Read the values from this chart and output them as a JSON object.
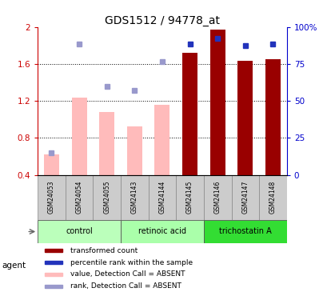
{
  "title": "GDS1512 / 94778_at",
  "samples": [
    "GSM24053",
    "GSM24054",
    "GSM24055",
    "GSM24143",
    "GSM24144",
    "GSM24145",
    "GSM24146",
    "GSM24147",
    "GSM24148"
  ],
  "groups": [
    {
      "name": "control",
      "color": "#bbffbb",
      "start": 0,
      "end": 3
    },
    {
      "name": "retinoic acid",
      "color": "#aaffaa",
      "start": 3,
      "end": 6
    },
    {
      "name": "trichostatin A",
      "color": "#33dd33",
      "start": 6,
      "end": 9
    }
  ],
  "bar_values": [
    0.62,
    1.24,
    1.08,
    0.92,
    1.16,
    1.72,
    1.97,
    1.63,
    1.65
  ],
  "bar_absent": [
    true,
    true,
    true,
    true,
    true,
    false,
    false,
    false,
    false
  ],
  "rank_values": [
    0.635,
    1.82,
    1.36,
    1.31,
    1.625,
    1.82,
    1.875,
    1.8,
    1.82
  ],
  "rank_absent": [
    true,
    true,
    true,
    true,
    true,
    false,
    false,
    false,
    false
  ],
  "ylim_left": [
    0.4,
    2.0
  ],
  "ylim_right": [
    0,
    100
  ],
  "yticks_left": [
    0.4,
    0.8,
    1.2,
    1.6,
    2.0
  ],
  "ytick_labels_left": [
    "0.4",
    "0.8",
    "1.2",
    "1.6",
    "2"
  ],
  "ytick_labels_right": [
    "0",
    "25",
    "50",
    "75",
    "100%"
  ],
  "bar_color_present": "#990000",
  "bar_color_absent": "#ffbbbb",
  "rank_color_present": "#2233bb",
  "rank_color_absent": "#9999cc",
  "bar_width": 0.55,
  "legend_items": [
    {
      "color": "#990000",
      "label": "transformed count"
    },
    {
      "color": "#2233bb",
      "label": "percentile rank within the sample"
    },
    {
      "color": "#ffbbbb",
      "label": "value, Detection Call = ABSENT"
    },
    {
      "color": "#9999cc",
      "label": "rank, Detection Call = ABSENT"
    }
  ],
  "sample_cell_color": "#cccccc",
  "grid_lines": [
    0.8,
    1.2,
    1.6
  ]
}
